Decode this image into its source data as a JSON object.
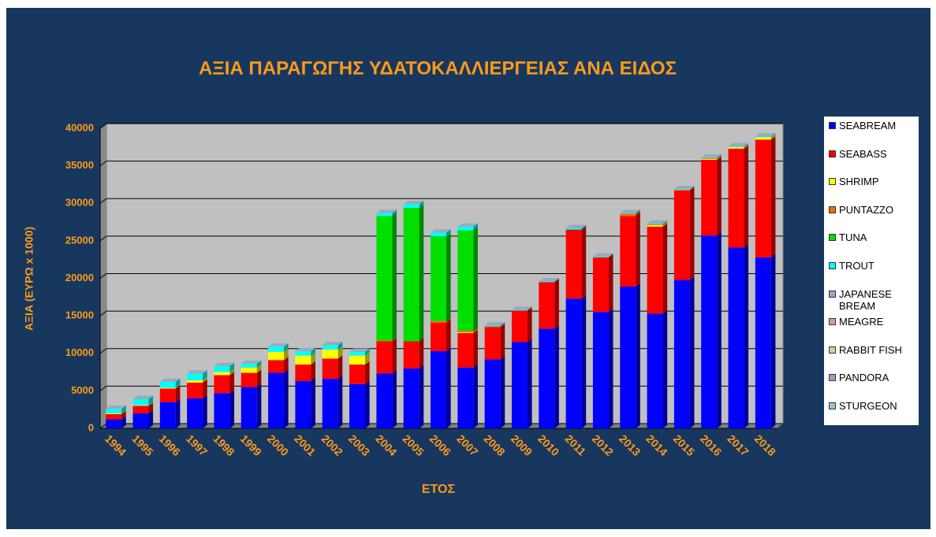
{
  "chart_data": {
    "type": "bar",
    "stacked": true,
    "title": "ΑΞΙΑ ΠΑΡΑΓΩΓΗΣ ΥΔΑΤΟΚΑΛΛΙΕΡΓΕΙΑΣ ΑΝΑ ΕΙΔΟΣ",
    "x_label": "ΕΤΟΣ",
    "y_label": "ΑΞΙΑ  (ΕΥΡΩ x 1000)",
    "categories": [
      "1994",
      "1995",
      "1996",
      "1997",
      "1998",
      "1999",
      "2000",
      "2001",
      "2002",
      "2003",
      "2004",
      "2005",
      "2006",
      "2007",
      "2008",
      "2009",
      "2010",
      "2011",
      "2012",
      "2013",
      "2014",
      "2015",
      "2016",
      "2017",
      "2018"
    ],
    "series": [
      {
        "name": "SEABREAM",
        "color": "#0000ff",
        "values": [
          1200,
          2000,
          3500,
          4000,
          4700,
          5500,
          7400,
          6300,
          6600,
          5900,
          7300,
          8000,
          10300,
          8100,
          9200,
          11500,
          13300,
          17300,
          15500,
          18900,
          15300,
          19800,
          25700,
          24100,
          22800
        ]
      },
      {
        "name": "SEABASS",
        "color": "#ff0000",
        "values": [
          700,
          1000,
          1800,
          2100,
          2400,
          1900,
          1700,
          2200,
          2700,
          2600,
          4300,
          3600,
          3800,
          4600,
          4300,
          4200,
          6200,
          9200,
          7300,
          9400,
          11600,
          11900,
          10100,
          13200,
          15700
        ]
      },
      {
        "name": "SHRIMP",
        "color": "#ffff00",
        "values": [
          100,
          100,
          100,
          300,
          400,
          700,
          1100,
          1200,
          1200,
          1200,
          0,
          0,
          0,
          100,
          0,
          0,
          0,
          0,
          0,
          0,
          200,
          0,
          100,
          200,
          300
        ]
      },
      {
        "name": "PUNTAZZO",
        "color": "#ff6600",
        "values": [
          0,
          0,
          0,
          0,
          0,
          0,
          0,
          0,
          0,
          0,
          100,
          0,
          200,
          200,
          100,
          0,
          0,
          0,
          0,
          300,
          100,
          100,
          100,
          0,
          0
        ]
      },
      {
        "name": "TUNA",
        "color": "#00e000",
        "values": [
          0,
          0,
          0,
          0,
          0,
          0,
          0,
          0,
          0,
          0,
          16600,
          17800,
          11300,
          13400,
          0,
          0,
          0,
          0,
          0,
          0,
          0,
          0,
          0,
          0,
          0
        ]
      },
      {
        "name": "TROUT",
        "color": "#00ffff",
        "values": [
          600,
          800,
          800,
          900,
          800,
          500,
          700,
          600,
          600,
          500,
          400,
          500,
          500,
          500,
          100,
          100,
          100,
          200,
          100,
          100,
          100,
          100,
          100,
          100,
          100
        ]
      },
      {
        "name": "JAPANESE BREAM",
        "color": "#8fa8d8",
        "values": [
          0,
          0,
          0,
          0,
          0,
          0,
          0,
          0,
          0,
          0,
          0,
          0,
          0,
          0,
          0,
          0,
          0,
          0,
          0,
          0,
          0,
          0,
          0,
          0,
          0
        ]
      },
      {
        "name": "MEAGRE",
        "color": "#d89a9a",
        "values": [
          0,
          0,
          0,
          0,
          0,
          0,
          0,
          0,
          0,
          0,
          0,
          0,
          0,
          0,
          0,
          0,
          0,
          0,
          0,
          0,
          0,
          0,
          0,
          0,
          0
        ]
      },
      {
        "name": "RABBIT FISH",
        "color": "#bcd89a",
        "values": [
          0,
          0,
          0,
          0,
          0,
          0,
          0,
          0,
          0,
          0,
          0,
          0,
          0,
          0,
          0,
          0,
          0,
          0,
          0,
          0,
          0,
          0,
          0,
          0,
          0
        ]
      },
      {
        "name": "PANDORA",
        "color": "#a89ac8",
        "values": [
          0,
          0,
          0,
          0,
          0,
          0,
          0,
          0,
          0,
          0,
          0,
          0,
          0,
          0,
          0,
          0,
          0,
          0,
          0,
          0,
          0,
          0,
          0,
          0,
          0
        ]
      },
      {
        "name": "STURGEON",
        "color": "#8ec8d8",
        "values": [
          0,
          0,
          0,
          0,
          0,
          0,
          0,
          0,
          0,
          0,
          0,
          0,
          0,
          0,
          0,
          0,
          0,
          0,
          0,
          0,
          0,
          0,
          0,
          0,
          0
        ]
      }
    ],
    "ylim": [
      0,
      40000
    ],
    "yticks": [
      0,
      5000,
      10000,
      15000,
      20000,
      25000,
      30000,
      35000,
      40000
    ],
    "grid": true,
    "legend": "right"
  }
}
